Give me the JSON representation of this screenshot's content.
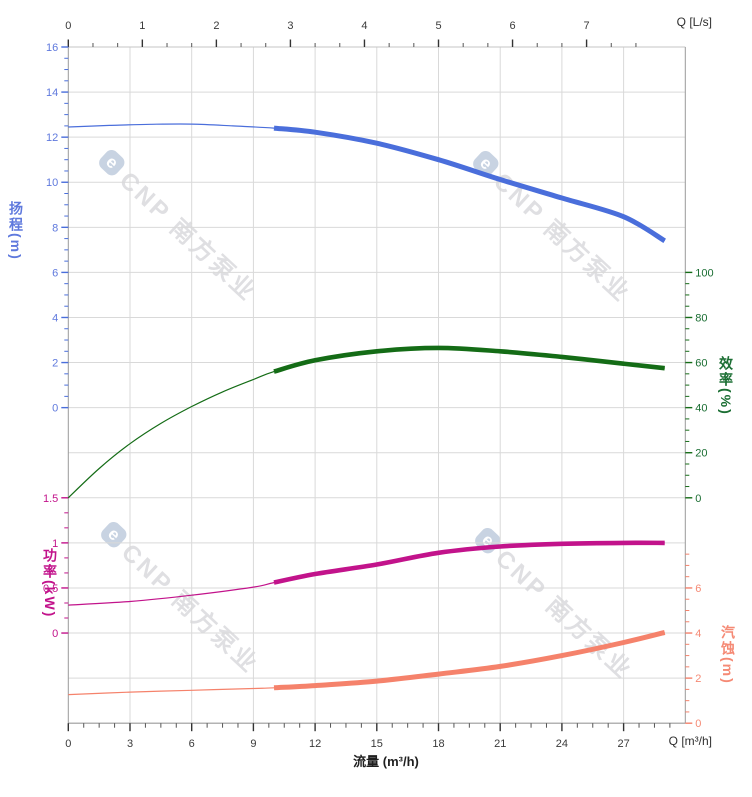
{
  "watermark": {
    "logo_letter": "e",
    "text": "CNP 南方泵业"
  },
  "chart_data": {
    "type": "line",
    "title": "",
    "grid": true,
    "thick_segment_from_x": 10,
    "x_bottom": {
      "axis_title": "流量 (m³/h)",
      "unit": "Q [m³/h]",
      "range": [
        0,
        30
      ],
      "ticks": [
        0,
        3,
        6,
        9,
        12,
        15,
        18,
        21,
        24,
        27
      ],
      "tick_labels": [
        "0",
        "3",
        "6",
        "9",
        "12",
        "15",
        "18",
        "21",
        "24",
        "27"
      ],
      "color": "#3a3a3a"
    },
    "x_top": {
      "unit": "Q [L/s]",
      "range": [
        0,
        8.33
      ],
      "ticks": [
        0,
        1,
        2,
        3,
        4,
        5,
        6,
        7
      ],
      "tick_labels": [
        "0",
        "1",
        "2",
        "3",
        "4",
        "5",
        "6",
        "7"
      ],
      "color": "#3a3a3a"
    },
    "series": [
      {
        "name": "head",
        "axis_title": "扬程(m)",
        "unit": "m",
        "color": "#4a6edb",
        "text_color": "#5f79dd",
        "axis_range": [
          0,
          16
        ],
        "axis_ticks": [
          16,
          14,
          12,
          10,
          8,
          6,
          4,
          2,
          0
        ],
        "tick_labels": [
          "16",
          "14",
          "12",
          "10",
          "8",
          "6",
          "4",
          "2",
          "0"
        ],
        "points": [
          [
            0,
            12.45
          ],
          [
            2,
            12.52
          ],
          [
            4,
            12.57
          ],
          [
            6,
            12.58
          ],
          [
            8,
            12.5
          ],
          [
            10,
            12.4
          ],
          [
            12,
            12.22
          ],
          [
            15,
            11.73
          ],
          [
            18,
            11.0
          ],
          [
            21,
            10.12
          ],
          [
            24,
            9.3
          ],
          [
            27,
            8.47
          ],
          [
            29,
            7.4
          ]
        ]
      },
      {
        "name": "efficiency",
        "axis_title": "效率(%)",
        "unit": "%",
        "color": "#146c16",
        "text_color": "#1b6e33",
        "axis_range": [
          0,
          100
        ],
        "axis_ticks": [
          100,
          80,
          60,
          40,
          20,
          0
        ],
        "tick_labels": [
          "100",
          "80",
          "60",
          "40",
          "20",
          "0"
        ],
        "points": [
          [
            0,
            0
          ],
          [
            1.5,
            13
          ],
          [
            3,
            24
          ],
          [
            4.5,
            33
          ],
          [
            6,
            40.5
          ],
          [
            7.5,
            47
          ],
          [
            9,
            52.5
          ],
          [
            10,
            56
          ],
          [
            12,
            61
          ],
          [
            15,
            65
          ],
          [
            18,
            66.5
          ],
          [
            21,
            65
          ],
          [
            24,
            62.5
          ],
          [
            27,
            59.5
          ],
          [
            29,
            57.5
          ]
        ]
      },
      {
        "name": "power",
        "axis_title": "功率(kW)",
        "unit": "kW",
        "color": "#c2138b",
        "text_color": "#c2138b",
        "axis_range": [
          0,
          1.5
        ],
        "axis_ticks": [
          1.5,
          1,
          0.5,
          0
        ],
        "tick_labels": [
          "1.5",
          "1",
          "0.5",
          "0"
        ],
        "points": [
          [
            0,
            0.31
          ],
          [
            3,
            0.35
          ],
          [
            6,
            0.42
          ],
          [
            9,
            0.51
          ],
          [
            10,
            0.56
          ],
          [
            12,
            0.655
          ],
          [
            15,
            0.76
          ],
          [
            18,
            0.89
          ],
          [
            21,
            0.96
          ],
          [
            24,
            0.99
          ],
          [
            27,
            1.0
          ],
          [
            29,
            1.0
          ]
        ]
      },
      {
        "name": "npsh",
        "axis_title": "汽蚀(m)",
        "unit": "m",
        "color": "#f5826b",
        "text_color": "#f58a75",
        "axis_range": [
          0,
          6
        ],
        "axis_ticks": [
          6,
          4,
          2,
          0
        ],
        "tick_labels": [
          "6",
          "4",
          "2",
          "0"
        ],
        "points": [
          [
            0,
            1.27
          ],
          [
            3,
            1.38
          ],
          [
            6,
            1.46
          ],
          [
            9,
            1.54
          ],
          [
            10,
            1.57
          ],
          [
            12,
            1.67
          ],
          [
            15,
            1.87
          ],
          [
            18,
            2.18
          ],
          [
            21,
            2.52
          ],
          [
            24,
            3.0
          ],
          [
            27,
            3.58
          ],
          [
            29,
            4.03
          ]
        ]
      }
    ]
  }
}
